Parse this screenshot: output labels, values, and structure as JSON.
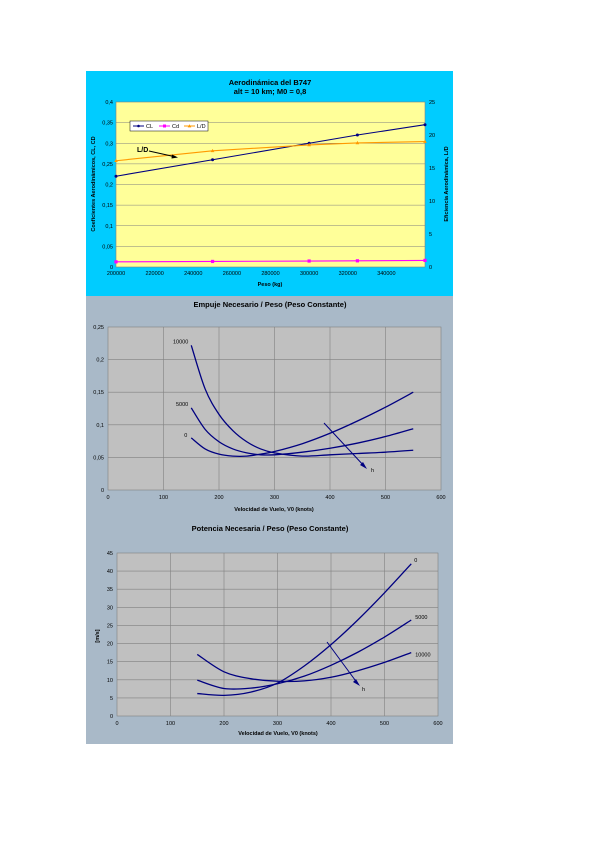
{
  "chart_data": [
    {
      "type": "line",
      "title": "Aerodinámica del B747",
      "subtitle": "alt = 10 km; M0 = 0,8",
      "xlabel": "Peso (kg)",
      "ylabel": "Coeficientes Aerodinámicos, CL, CD",
      "y2label": "Eficiencia Aerodinámica, L/D",
      "xlim": [
        200000,
        360000
      ],
      "ylim": [
        0,
        0.4
      ],
      "y2lim": [
        0,
        25
      ],
      "xticks": [
        "200000",
        "220000",
        "240000",
        "260000",
        "280000",
        "300000",
        "320000",
        "340000"
      ],
      "yticks": [
        "0",
        "0,05",
        "0,1",
        "0,15",
        "0,2",
        "0,25",
        "0,3",
        "0,35",
        "0,4"
      ],
      "y2ticks": [
        "0",
        "5",
        "10",
        "15",
        "20",
        "25"
      ],
      "legend": [
        "CL",
        "Cd",
        "L/D"
      ],
      "legend_position": "top-left",
      "annotation": "L/D",
      "grid": true,
      "colors": {
        "background": "#ffff99",
        "CL": "#000080",
        "Cd": "#ff00ff",
        "LD": "#ff9900"
      },
      "series": [
        {
          "name": "CL",
          "axis": "left",
          "x": [
            200000,
            250000,
            300000,
            325000,
            360000
          ],
          "values": [
            0.22,
            0.26,
            0.3,
            0.32,
            0.345
          ]
        },
        {
          "name": "Cd",
          "axis": "left",
          "x": [
            200000,
            250000,
            300000,
            325000,
            360000
          ],
          "values": [
            0.0125,
            0.0135,
            0.0145,
            0.015,
            0.016
          ]
        },
        {
          "name": "L/D",
          "axis": "right",
          "x": [
            200000,
            250000,
            300000,
            325000,
            360000
          ],
          "values": [
            16.1,
            17.6,
            18.5,
            18.8,
            19.0
          ]
        }
      ]
    },
    {
      "type": "line",
      "title": "Empuje Necesario / Peso (Peso Constante)",
      "xlabel": "Velocidad de Vuelo, V0 (knots)",
      "xlim": [
        0,
        600
      ],
      "ylim": [
        0,
        0.25
      ],
      "xticks": [
        "0",
        "100",
        "200",
        "300",
        "400",
        "500",
        "600"
      ],
      "yticks": [
        "0",
        "0,05",
        "0,1",
        "0,15",
        "0,2",
        "0,25"
      ],
      "grid": true,
      "arrow_label": "h",
      "colors": {
        "background": "#c0c0c0",
        "line": "#000080"
      },
      "series": [
        {
          "name": "10000",
          "x": [
            150,
            175,
            200,
            225,
            250,
            275,
            300,
            350,
            400,
            450,
            500,
            550
          ],
          "values": [
            0.222,
            0.155,
            0.116,
            0.091,
            0.074,
            0.063,
            0.057,
            0.052,
            0.054,
            0.056,
            0.058,
            0.061
          ]
        },
        {
          "name": "5000",
          "x": [
            150,
            175,
            200,
            225,
            250,
            275,
            300,
            350,
            400,
            450,
            500,
            550
          ],
          "values": [
            0.126,
            0.093,
            0.074,
            0.063,
            0.057,
            0.054,
            0.054,
            0.058,
            0.064,
            0.072,
            0.082,
            0.094
          ]
        },
        {
          "name": "0",
          "x": [
            150,
            175,
            200,
            225,
            250,
            275,
            300,
            350,
            400,
            450,
            500,
            550
          ],
          "values": [
            0.08,
            0.063,
            0.055,
            0.052,
            0.052,
            0.055,
            0.059,
            0.071,
            0.087,
            0.106,
            0.127,
            0.15
          ]
        }
      ]
    },
    {
      "type": "line",
      "title": "Potencia Necesaria / Peso (Peso Constante)",
      "xlabel": "Velocidad de Vuelo, V0 (knots)",
      "ylabel": "[m/s]",
      "xlim": [
        0,
        600
      ],
      "ylim": [
        0,
        45
      ],
      "xticks": [
        "0",
        "100",
        "200",
        "300",
        "400",
        "500",
        "600"
      ],
      "yticks": [
        "0",
        "5",
        "10",
        "15",
        "20",
        "25",
        "30",
        "35",
        "40",
        "45"
      ],
      "grid": true,
      "arrow_label": "h",
      "colors": {
        "background": "#c0c0c0",
        "line": "#000080"
      },
      "series": [
        {
          "name": "0",
          "x": [
            150,
            200,
            250,
            300,
            350,
            400,
            450,
            500,
            550
          ],
          "values": [
            6.2,
            5.7,
            6.6,
            9.1,
            13.8,
            19.7,
            26.5,
            34,
            42
          ]
        },
        {
          "name": "5000",
          "x": [
            150,
            200,
            250,
            300,
            350,
            400,
            450,
            500,
            550
          ],
          "values": [
            9.9,
            7.6,
            7.7,
            8.9,
            11,
            14,
            17.6,
            21.8,
            26.5
          ]
        },
        {
          "name": "10000",
          "x": [
            150,
            200,
            250,
            300,
            350,
            400,
            450,
            500,
            550
          ],
          "values": [
            17,
            12.2,
            10.3,
            9.6,
            9.7,
            10.7,
            12.5,
            14.8,
            17.5
          ]
        }
      ]
    }
  ]
}
